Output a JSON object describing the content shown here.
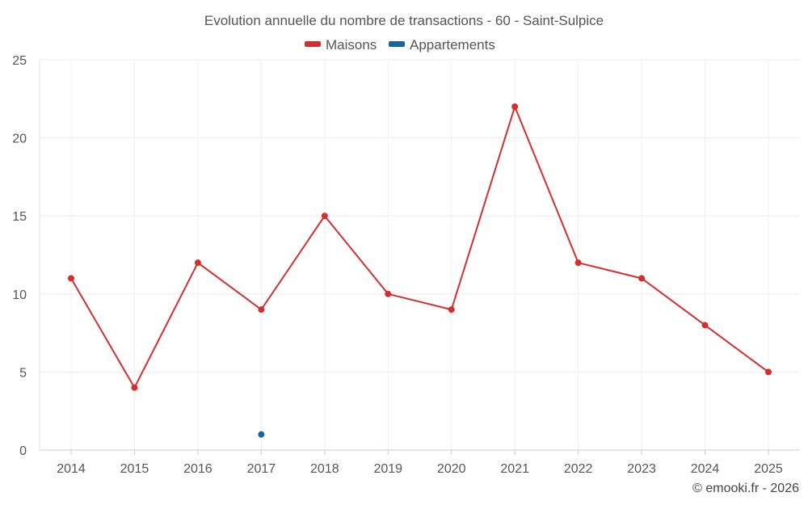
{
  "chart_data": {
    "type": "line",
    "title": "Evolution annuelle du nombre de transactions - 60 - Saint-Sulpice",
    "xlabel": "",
    "ylabel": "",
    "categories": [
      "2014",
      "2015",
      "2016",
      "2017",
      "2018",
      "2019",
      "2020",
      "2021",
      "2022",
      "2023",
      "2024",
      "2025"
    ],
    "ylim": [
      0,
      25
    ],
    "yticks": [
      0,
      5,
      10,
      15,
      20,
      25
    ],
    "grid": true,
    "legend_position": "top-center",
    "series": [
      {
        "name": "Maisons",
        "color": "#d32f2f",
        "values": [
          11,
          4,
          12,
          9,
          15,
          10,
          9,
          22,
          12,
          11,
          8,
          5
        ]
      },
      {
        "name": "Appartements",
        "color": "#1565a0",
        "values": [
          null,
          null,
          null,
          1,
          null,
          null,
          null,
          null,
          null,
          null,
          null,
          null
        ]
      }
    ]
  },
  "credit": "© emooki.fr - 2026"
}
